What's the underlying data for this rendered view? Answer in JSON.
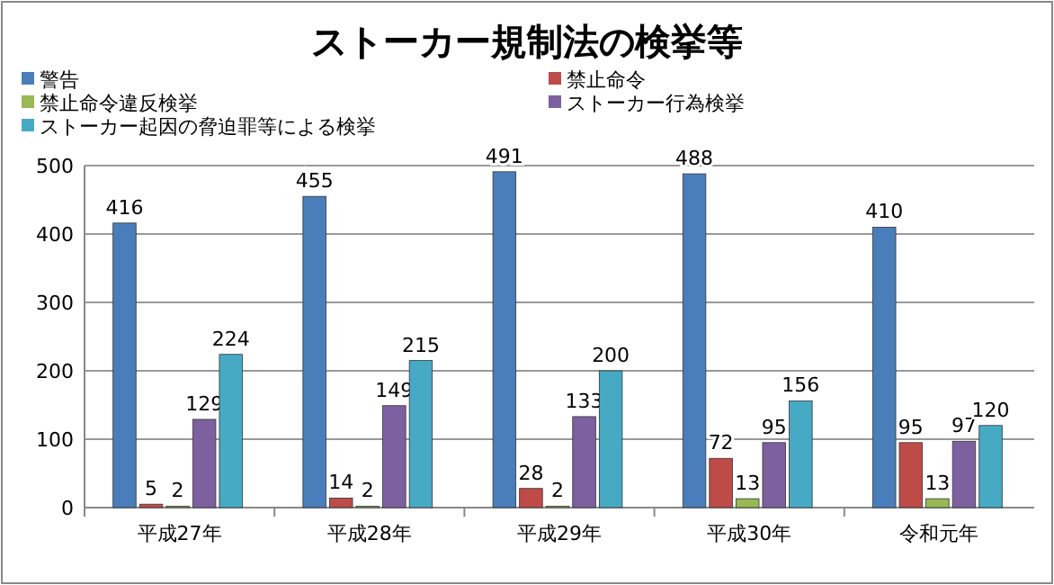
{
  "chart_data": {
    "type": "bar",
    "title": "ストーカー規制法の検挙等",
    "categories": [
      "平成27年",
      "平成28年",
      "平成29年",
      "平成30年",
      "令和元年"
    ],
    "series": [
      {
        "name": "警告",
        "color": "#4a7ebb",
        "values": [
          416,
          455,
          491,
          488,
          410
        ]
      },
      {
        "name": "禁止命令",
        "color": "#be4b48",
        "values": [
          5,
          14,
          28,
          72,
          95
        ]
      },
      {
        "name": "禁止命令違反検挙",
        "color": "#98b954",
        "values": [
          2,
          2,
          2,
          13,
          13
        ]
      },
      {
        "name": "ストーカー行為検挙",
        "color": "#7d60a0",
        "values": [
          129,
          149,
          133,
          95,
          97
        ]
      },
      {
        "name": "ストーカー起因の脅迫罪等による検挙",
        "color": "#46aac5",
        "values": [
          224,
          215,
          200,
          156,
          120
        ]
      }
    ],
    "ylim": [
      0,
      500
    ],
    "yticks": [
      0,
      100,
      200,
      300,
      400,
      500
    ],
    "grid": "y",
    "legend": "top",
    "data_labels": true
  }
}
